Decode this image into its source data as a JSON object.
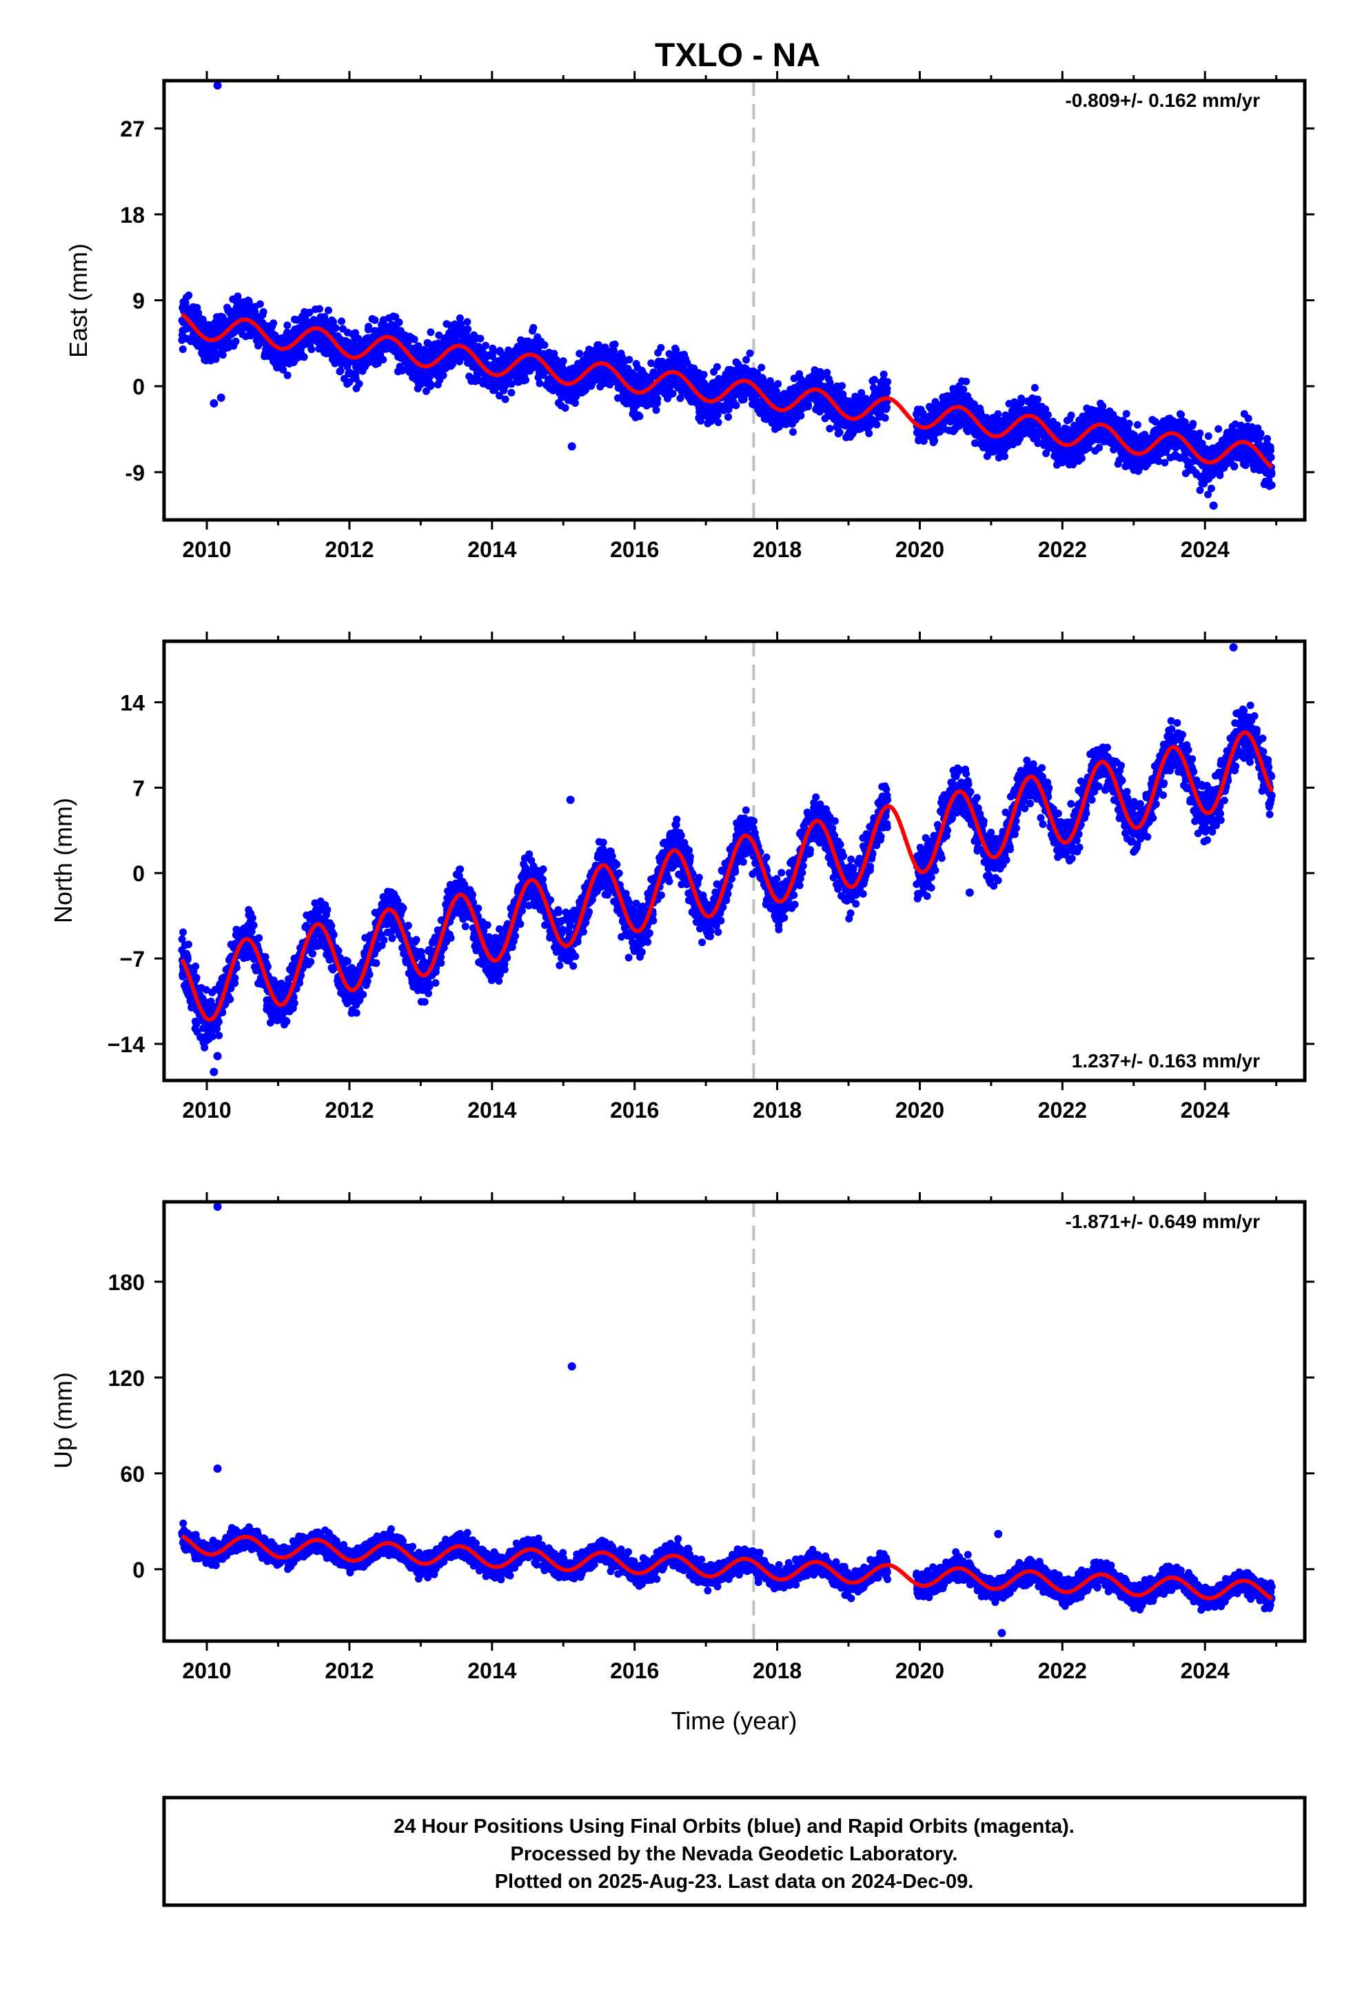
{
  "title": "TXLO - NA",
  "footer": {
    "lines": [
      "24 Hour Positions Using Final Orbits (blue) and Rapid Orbits (magenta).",
      "Processed by the Nevada Geodetic Laboratory.",
      "Plotted on 2025-Aug-23. Last data on 2024-Dec-09."
    ]
  },
  "colors": {
    "data": "#0000ff",
    "model": "#ff0000",
    "event_line": "#c0c0c0",
    "frame": "#000000"
  },
  "chart_data": [
    {
      "type": "scatter",
      "component": "East",
      "ylabel": "East (mm)",
      "xlabel": "",
      "rate": "-0.809+/- 0.162 mm/yr",
      "rate_position": "top-right",
      "xlim": [
        2009.4,
        2025.4
      ],
      "ylim": [
        -14,
        32
      ],
      "yticks": [
        -9,
        0,
        9,
        18,
        27
      ],
      "ytick_labels": [
        "-9",
        "0",
        "9",
        "18",
        "27"
      ],
      "xticks": [
        2010,
        2012,
        2014,
        2016,
        2018,
        2020,
        2022,
        2024
      ],
      "xtick_labels": [
        "2010",
        "2012",
        "2014",
        "2016",
        "2018",
        "2020",
        "2022",
        "2024"
      ],
      "event_line_x": 2017.67,
      "data_range": [
        2009.65,
        2024.94
      ],
      "gap": [
        2019.55,
        2019.95
      ],
      "model": {
        "trend_start": 6.5,
        "trend_end": -7.5,
        "seasonal_amplitude": 1.3,
        "offset_after_gap": 0.0
      },
      "scatter_noise": 1.6,
      "outliers": [
        [
          2010.15,
          31.5
        ],
        [
          2010.1,
          -1.8
        ],
        [
          2010.2,
          -1.2
        ],
        [
          2015.12,
          -6.3
        ],
        [
          2024.12,
          -12.5
        ]
      ]
    },
    {
      "type": "scatter",
      "component": "North",
      "ylabel": "North (mm)",
      "xlabel": "",
      "rate": "1.237+/- 0.163 mm/yr",
      "rate_position": "bottom-right",
      "xlim": [
        2009.4,
        2025.4
      ],
      "ylim": [
        -17,
        19
      ],
      "yticks": [
        -14,
        -7,
        0,
        7,
        14
      ],
      "ytick_labels": [
        "−14",
        "−7",
        "0",
        "7",
        "14"
      ],
      "xticks": [
        2010,
        2012,
        2014,
        2016,
        2018,
        2020,
        2022,
        2024
      ],
      "xtick_labels": [
        "2010",
        "2012",
        "2014",
        "2016",
        "2018",
        "2020",
        "2022",
        "2024"
      ],
      "event_line_x": 2017.67,
      "data_range": [
        2009.65,
        2024.94
      ],
      "gap": [
        2019.55,
        2019.95
      ],
      "model": {
        "trend_start": -9.5,
        "trend_end": 9.0,
        "seasonal_amplitude": 3.0,
        "offset_after_gap": 0.0
      },
      "scatter_noise": 1.4,
      "outliers": [
        [
          2010.15,
          -15.0
        ],
        [
          2010.1,
          -16.3
        ],
        [
          2015.1,
          6.0
        ],
        [
          2020.7,
          -1.6
        ],
        [
          2024.4,
          18.5
        ]
      ]
    },
    {
      "type": "scatter",
      "component": "Up",
      "ylabel": "Up (mm)",
      "xlabel": "Time (year)",
      "rate": "-1.871+/- 0.649 mm/yr",
      "rate_position": "top-right",
      "xlim": [
        2009.4,
        2025.4
      ],
      "ylim": [
        -45,
        230
      ],
      "yticks": [
        0,
        60,
        120,
        180
      ],
      "ytick_labels": [
        "0",
        "60",
        "120",
        "180"
      ],
      "xticks": [
        2010,
        2012,
        2014,
        2016,
        2018,
        2020,
        2022,
        2024
      ],
      "xtick_labels": [
        "2010",
        "2012",
        "2014",
        "2016",
        "2018",
        "2020",
        "2022",
        "2024"
      ],
      "event_line_x": 2017.67,
      "data_range": [
        2009.65,
        2024.94
      ],
      "gap": [
        2019.55,
        2019.95
      ],
      "model": {
        "trend_start": 16.0,
        "trend_end": -14.0,
        "seasonal_amplitude": 6.0,
        "offset_after_gap": 0.0
      },
      "scatter_noise": 5.0,
      "outliers": [
        [
          2010.15,
          227.0
        ],
        [
          2010.15,
          63.0
        ],
        [
          2015.12,
          127.0
        ],
        [
          2021.1,
          22.0
        ],
        [
          2021.15,
          -40.0
        ]
      ]
    }
  ]
}
